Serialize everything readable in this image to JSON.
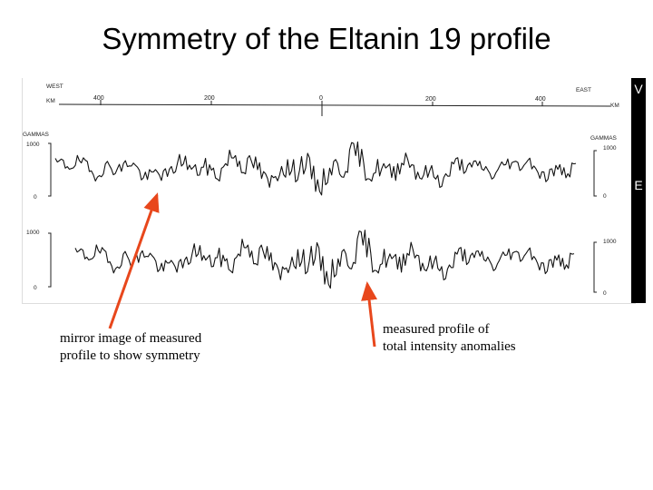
{
  "slide": {
    "title": "Symmetry of the Eltanin 19 profile"
  },
  "figure": {
    "direction_west": "WEST",
    "direction_east": "EAST",
    "km_label_left": "KM",
    "km_label_right": "KM",
    "km_ticks": [
      "400",
      "200",
      "0",
      "200",
      "400"
    ],
    "gammas_label_left": "GAMMAS",
    "gammas_label_right": "GAMMAS",
    "scale_top_1000": "1000",
    "scale_top_0": "0",
    "scale_bottom_1000": "1000",
    "scale_bottom_0": "0",
    "scale_right_top_1000": "1000",
    "scale_right_top_0": "0",
    "scale_right_bottom_1000": "1000",
    "scale_right_bottom_0": "0"
  },
  "edge_letters": {
    "upper": "V",
    "lower": "E"
  },
  "annotations": {
    "left_line1": "mirror image of measured",
    "left_line2": "profile to show symmetry",
    "right_line1": "measured  profile of",
    "right_line2": "total intensity anomalies"
  },
  "colors": {
    "arrow": "#e8471c",
    "profile": "#111111"
  }
}
